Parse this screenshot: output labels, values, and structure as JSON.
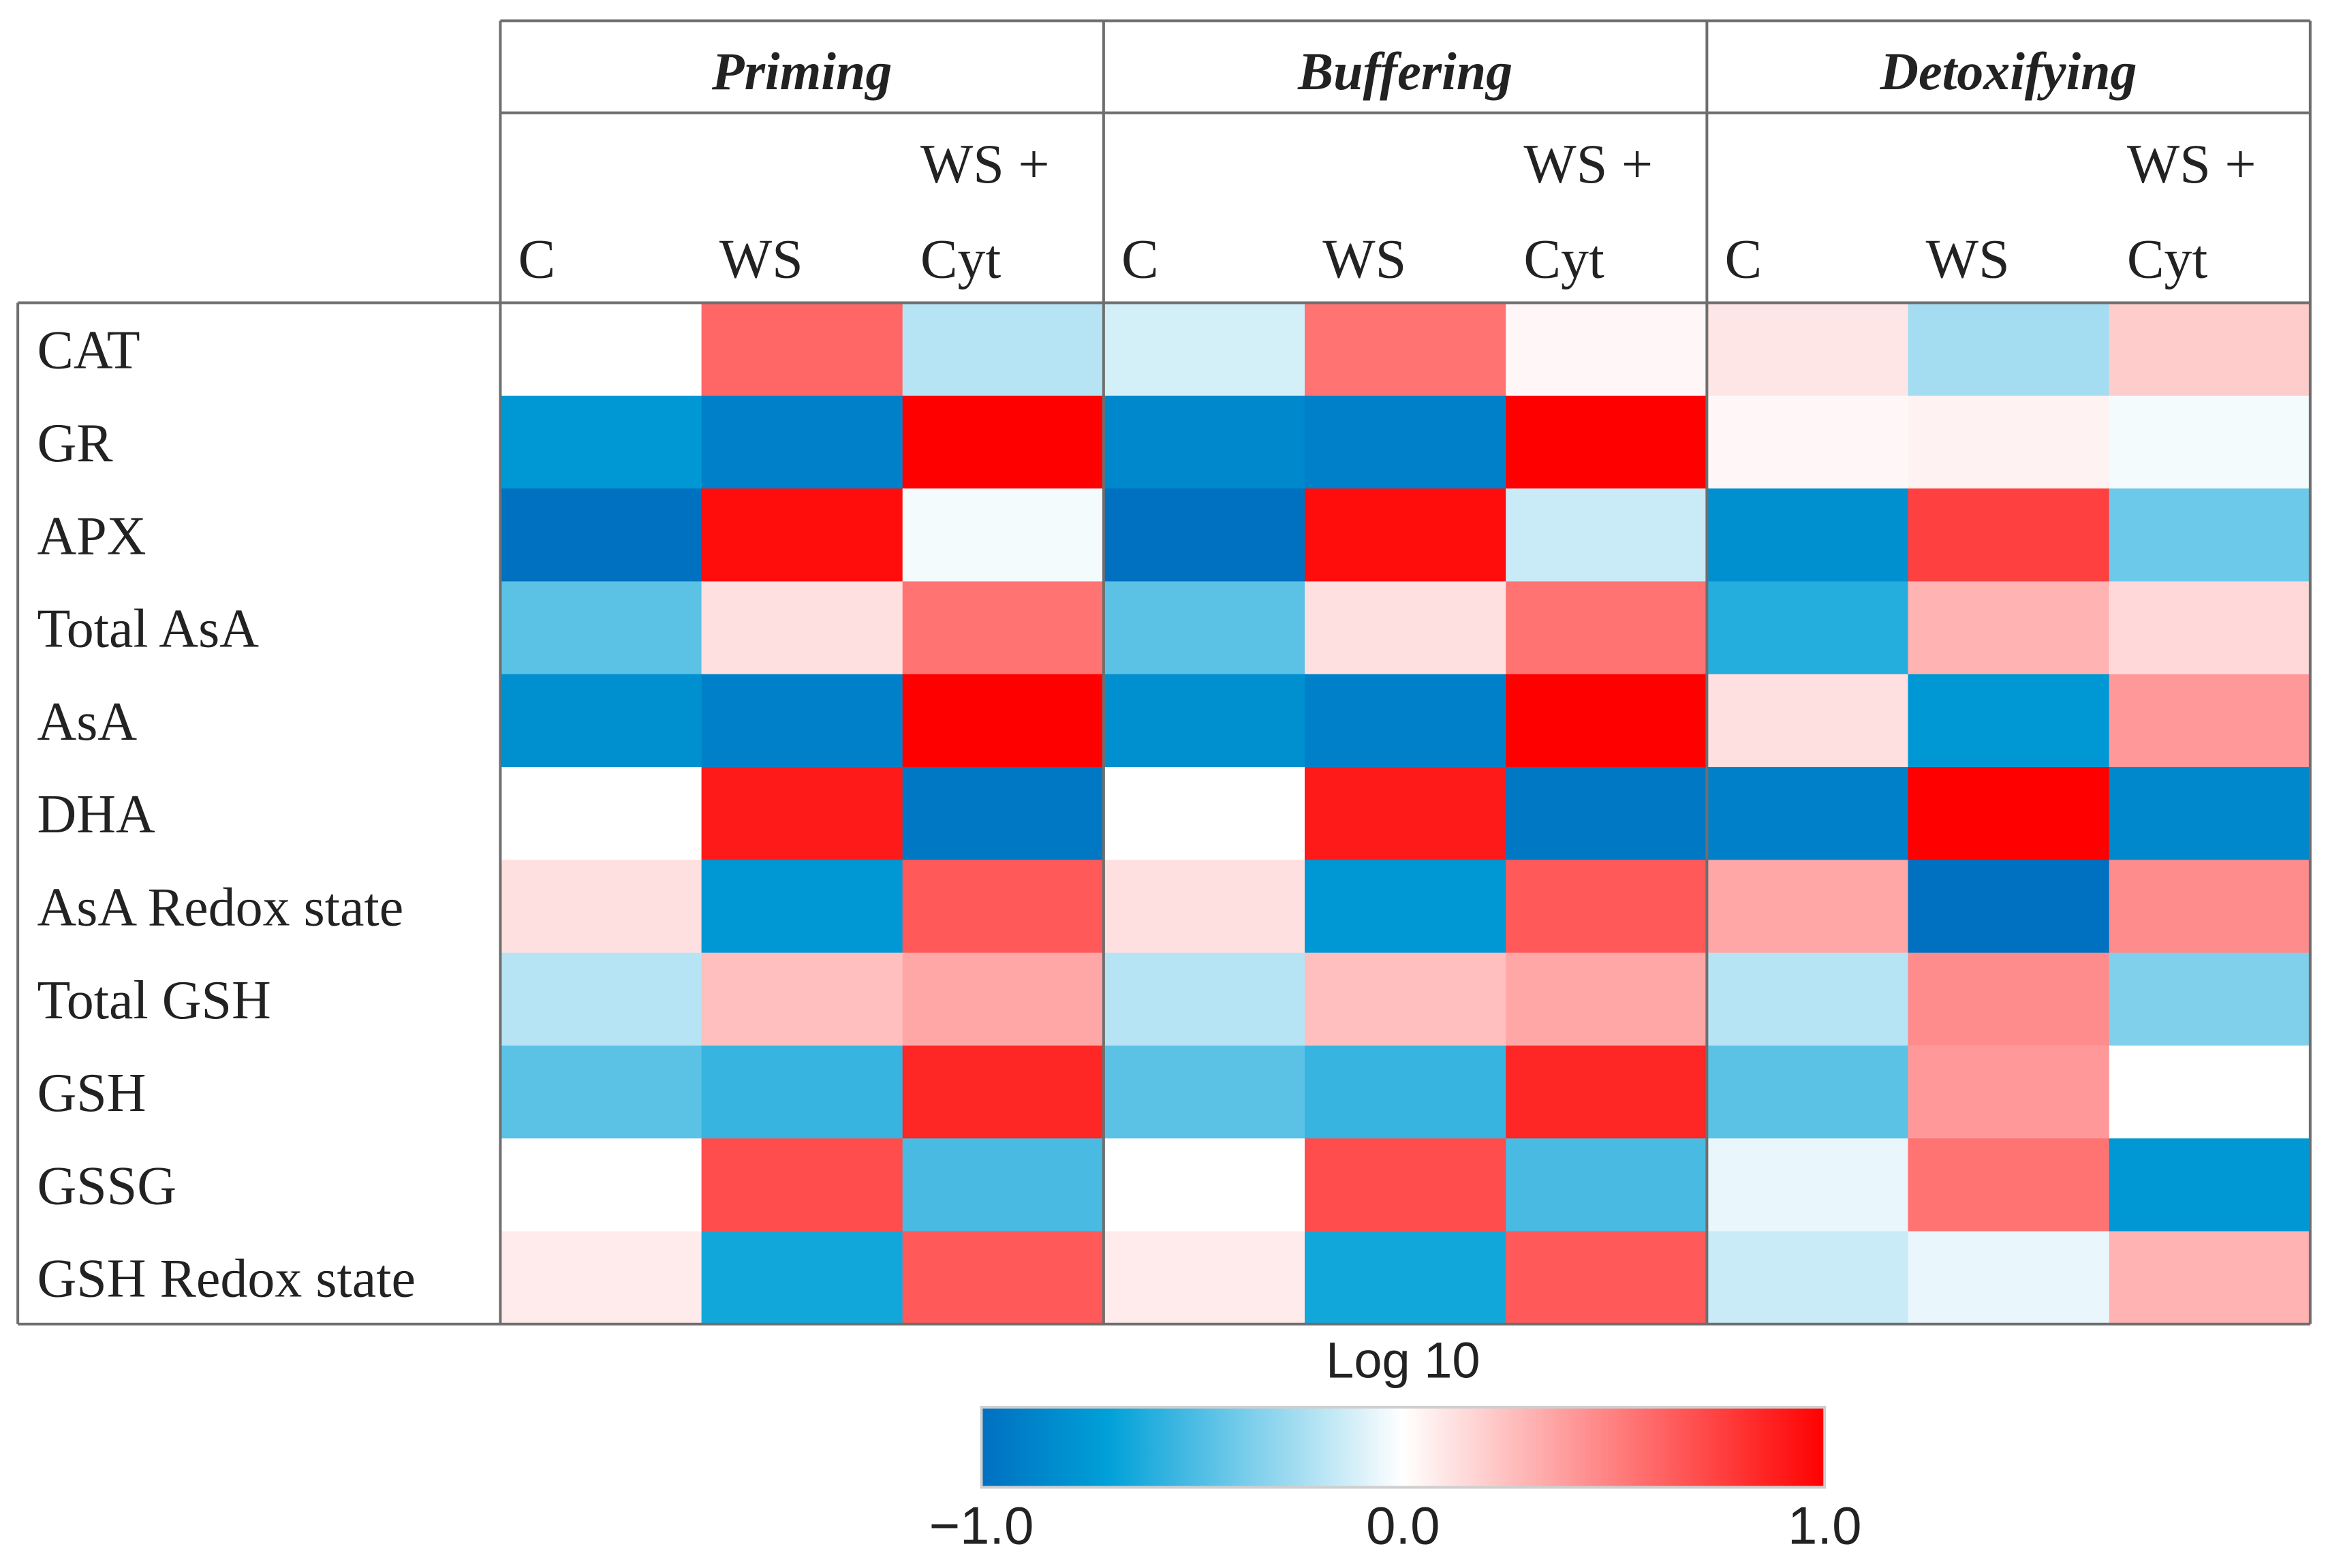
{
  "chart_data": {
    "type": "heatmap",
    "title": "",
    "groups": [
      "Priming",
      "Buffering",
      "Detoxifying"
    ],
    "conditions": [
      {
        "line1": "",
        "line2": "C"
      },
      {
        "line1": "",
        "line2": "WS"
      },
      {
        "line1": "WS +",
        "line2": "Cyt"
      }
    ],
    "rows": [
      "CAT",
      "GR",
      "APX",
      "Total AsA",
      "AsA",
      "DHA",
      "AsA Redox state",
      "Total GSH",
      "GSH",
      "GSSG",
      "GSH Redox state"
    ],
    "values": [
      [
        0.0,
        0.6,
        -0.2,
        -0.12,
        0.55,
        0.03,
        0.1,
        -0.25,
        0.2
      ],
      [
        -0.75,
        -0.9,
        1.0,
        -0.85,
        -0.9,
        1.0,
        0.03,
        0.05,
        -0.03
      ],
      [
        -1.0,
        0.95,
        -0.03,
        -1.0,
        0.95,
        -0.15,
        -0.8,
        0.75,
        -0.4
      ],
      [
        -0.45,
        0.12,
        0.55,
        -0.45,
        0.12,
        0.55,
        -0.6,
        0.3,
        0.15
      ],
      [
        -0.8,
        -0.9,
        1.0,
        -0.8,
        -0.9,
        1.0,
        0.12,
        -0.75,
        0.4
      ],
      [
        0.0,
        0.9,
        -0.95,
        0.0,
        0.9,
        -0.95,
        -0.9,
        1.0,
        -0.85
      ],
      [
        0.12,
        -0.75,
        0.65,
        0.12,
        -0.75,
        0.65,
        0.35,
        -1.0,
        0.45
      ],
      [
        -0.2,
        0.25,
        0.35,
        -0.2,
        0.25,
        0.35,
        -0.2,
        0.45,
        -0.35
      ],
      [
        -0.45,
        -0.55,
        0.85,
        -0.45,
        -0.55,
        0.85,
        -0.45,
        0.4,
        0.0
      ],
      [
        0.0,
        0.7,
        -0.5,
        0.0,
        0.7,
        -0.5,
        -0.06,
        0.55,
        -0.75
      ],
      [
        0.08,
        -0.65,
        0.65,
        0.08,
        -0.65,
        0.65,
        -0.15,
        -0.06,
        0.3
      ]
    ],
    "colorbar": {
      "label": "Log 10",
      "min": -1.0,
      "max": 1.0,
      "ticks": [
        "−1.0",
        "0.0",
        "1.0"
      ]
    },
    "colors": {
      "negative": "#0070c0",
      "mid_negative": "#00a0d8",
      "neutral": "#ffffff",
      "positive": "#ff0000"
    }
  }
}
